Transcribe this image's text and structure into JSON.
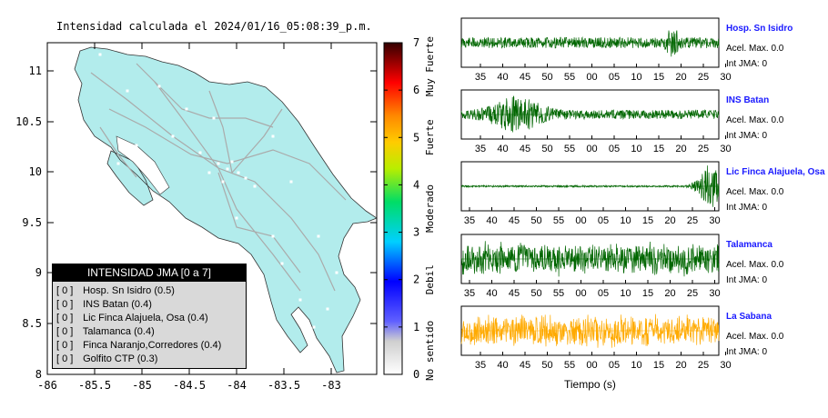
{
  "map": {
    "title": "Intensidad calculada el 2024/01/16_05:08:39_p.m.",
    "x_ticks": [
      "-86",
      "-85.5",
      "-85",
      "-84.5",
      "-84",
      "-83.5",
      "-83"
    ],
    "y_ticks": [
      "11",
      "10.5",
      "10",
      "9.5",
      "9",
      "8.5",
      "8"
    ],
    "land_color": "#b2ecec"
  },
  "colorbar": {
    "ticks": [
      "0",
      "1",
      "2",
      "3",
      "4",
      "5",
      "6",
      "7"
    ],
    "labels": [
      "No sentido",
      "Debil",
      "Moderado",
      "Fuerte",
      "Muy Fuerte"
    ]
  },
  "legend": {
    "title": "INTENSIDAD JMA [0 a 7]",
    "rows": [
      {
        "value": "[ 0 ]",
        "name": "Hosp. Sn Isidro (0.5)"
      },
      {
        "value": "[ 0 ]",
        "name": "INS Batan (0.4)"
      },
      {
        "value": "[ 0 ]",
        "name": "Lic Finca Alajuela, Osa (0.4)"
      },
      {
        "value": "[ 0 ]",
        "name": "Talamanca (0.4)"
      },
      {
        "value": "[ 0 ]",
        "name": "Finca Naranjo,Corredores (0.4)"
      },
      {
        "value": "[ 0 ]",
        "name": "Golfito CTP (0.3)"
      }
    ]
  },
  "chart_data": {
    "type": "line",
    "x_tick_labels": [
      "35",
      "40",
      "45",
      "50",
      "55",
      "00",
      "05",
      "10",
      "15",
      "20",
      "25",
      "30"
    ],
    "x_tick_labels_alt": [
      "35",
      "40",
      "45",
      "50",
      "55",
      "00",
      "05",
      "10",
      "15",
      "20",
      "25",
      "30"
    ],
    "xlabel": "Tiempo (s)",
    "series": [
      {
        "name": "Hosp. Sn Isidro",
        "accel": "Acel. Max. 0.0",
        "jma": "Int JMA: 0",
        "color": "#006600",
        "burst": 0.82
      },
      {
        "name": "INS Batan",
        "accel": "Acel. Max. 0.0",
        "jma": "Int JMA: 0",
        "color": "#006600",
        "burst": 0.22
      },
      {
        "name": "Lic Finca Alajuela, Osa",
        "accel": "Acel. Max. 0.0",
        "jma": "Int JMA: 0",
        "color": "#006600",
        "burst": 0.97
      },
      {
        "name": "Talamanca",
        "accel": "Acel. Max. 0.0",
        "jma": "Int JMA: 0",
        "color": "#006600",
        "burst": 0.5
      },
      {
        "name": "La Sabana",
        "accel": "Acel. Max. 0.0",
        "jma": "Int JMA: 0",
        "color": "#ffaa00",
        "burst": 0.5
      }
    ]
  }
}
